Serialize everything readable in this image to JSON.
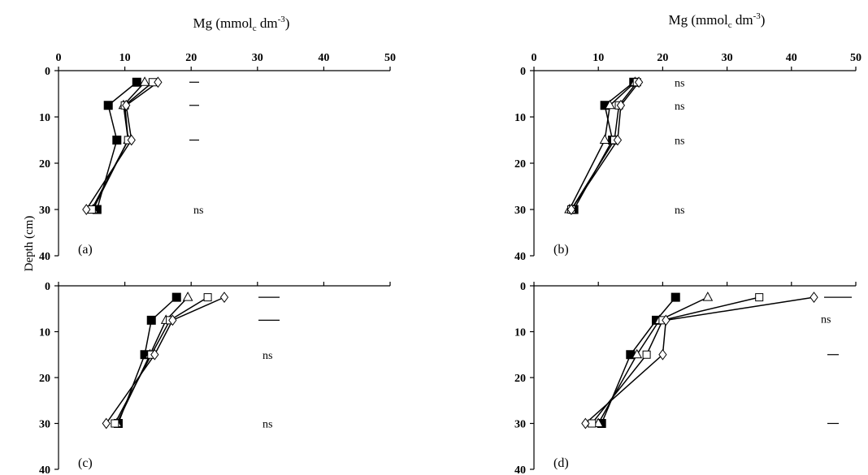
{
  "figure": {
    "title_prefix": "Mg (mmol",
    "title_sub": "c",
    "title_mid": " dm",
    "title_sup": "-3",
    "title_suffix": ")",
    "ylabel": "Depth (cm)"
  },
  "chart_data": [
    {
      "type": "line",
      "panel": "a",
      "label": "(a)",
      "show_title": true,
      "x_axis_position": "top",
      "xlim": [
        0,
        50
      ],
      "ylim": [
        0,
        40
      ],
      "y_inverted": true,
      "x_ticks": [
        0,
        10,
        20,
        30,
        40,
        50
      ],
      "y_ticks": [
        0,
        10,
        20,
        30,
        40
      ],
      "grid": false,
      "series": [
        {
          "marker": "filled-square",
          "points": [
            [
              11.8,
              2.5
            ],
            [
              7.5,
              7.5
            ],
            [
              8.8,
              15
            ],
            [
              5.8,
              30
            ]
          ]
        },
        {
          "marker": "open-triangle",
          "points": [
            [
              13,
              2.5
            ],
            [
              9.8,
              7.5
            ],
            [
              10.5,
              15
            ],
            [
              5.2,
              30
            ]
          ]
        },
        {
          "marker": "open-square",
          "points": [
            [
              14.2,
              2.5
            ],
            [
              10,
              7.5
            ],
            [
              10.5,
              15
            ],
            [
              5,
              30
            ]
          ]
        },
        {
          "marker": "open-diamond",
          "points": [
            [
              15,
              2.5
            ],
            [
              10.2,
              7.5
            ],
            [
              11,
              15
            ],
            [
              4.2,
              30
            ]
          ]
        }
      ],
      "significance": [
        {
          "depth": 2.5,
          "text": "",
          "dash": true
        },
        {
          "depth": 7.5,
          "text": "",
          "dash": true
        },
        {
          "depth": 15,
          "text": "",
          "dash": true
        },
        {
          "depth": 30,
          "text": "ns",
          "dash": false
        }
      ]
    },
    {
      "type": "line",
      "panel": "b",
      "label": "(b)",
      "show_title": true,
      "x_axis_position": "top",
      "xlim": [
        0,
        50
      ],
      "ylim": [
        0,
        40
      ],
      "y_inverted": true,
      "x_ticks": [
        0,
        10,
        20,
        30,
        40,
        50
      ],
      "y_ticks": [
        0,
        10,
        20,
        30,
        40
      ],
      "grid": false,
      "series": [
        {
          "marker": "filled-square",
          "points": [
            [
              15.5,
              2.5
            ],
            [
              11,
              7.5
            ],
            [
              12.2,
              15
            ],
            [
              6.2,
              30
            ]
          ]
        },
        {
          "marker": "open-triangle",
          "points": [
            [
              15.7,
              2.5
            ],
            [
              11.8,
              7.5
            ],
            [
              11,
              15
            ],
            [
              5.5,
              30
            ]
          ]
        },
        {
          "marker": "open-square",
          "points": [
            [
              16,
              2.5
            ],
            [
              13.2,
              7.5
            ],
            [
              12.5,
              15
            ],
            [
              5.8,
              30
            ]
          ]
        },
        {
          "marker": "open-diamond",
          "points": [
            [
              16.3,
              2.5
            ],
            [
              13.5,
              7.5
            ],
            [
              13,
              15
            ],
            [
              5.8,
              30
            ]
          ]
        }
      ],
      "significance": [
        {
          "depth": 2.5,
          "text": "ns",
          "dash": false
        },
        {
          "depth": 7.5,
          "text": "ns",
          "dash": false
        },
        {
          "depth": 15,
          "text": "ns",
          "dash": false
        },
        {
          "depth": 30,
          "text": "ns",
          "dash": false
        }
      ]
    },
    {
      "type": "line",
      "panel": "c",
      "label": "(c)",
      "show_title": false,
      "x_axis_position": "top",
      "xlim": [
        0,
        50
      ],
      "ylim": [
        0,
        40
      ],
      "y_inverted": true,
      "x_ticks": [],
      "y_ticks": [
        0,
        10,
        20,
        30,
        40
      ],
      "grid": false,
      "series": [
        {
          "marker": "filled-square",
          "points": [
            [
              17.8,
              2.5
            ],
            [
              14,
              7.5
            ],
            [
              13,
              15
            ],
            [
              9,
              30
            ]
          ]
        },
        {
          "marker": "open-triangle",
          "points": [
            [
              19.5,
              2.5
            ],
            [
              16.2,
              7.5
            ],
            [
              13.8,
              15
            ],
            [
              8.8,
              30
            ]
          ]
        },
        {
          "marker": "open-square",
          "points": [
            [
              22.5,
              2.5
            ],
            [
              16.8,
              7.5
            ],
            [
              14,
              15
            ],
            [
              8.5,
              30
            ]
          ]
        },
        {
          "marker": "open-diamond",
          "points": [
            [
              25,
              2.5
            ],
            [
              17.2,
              7.5
            ],
            [
              14.5,
              15
            ],
            [
              7.2,
              30
            ]
          ]
        }
      ],
      "significance": [
        {
          "depth": 2.5,
          "text": "",
          "dash": true
        },
        {
          "depth": 7.5,
          "text": "",
          "dash": true
        },
        {
          "depth": 15,
          "text": "ns",
          "dash": false
        },
        {
          "depth": 30,
          "text": "ns",
          "dash": false
        }
      ]
    },
    {
      "type": "line",
      "panel": "d",
      "label": "(d)",
      "show_title": false,
      "x_axis_position": "top",
      "xlim": [
        0,
        50
      ],
      "ylim": [
        0,
        40
      ],
      "y_inverted": true,
      "x_ticks": [],
      "y_ticks": [
        0,
        10,
        20,
        30,
        40
      ],
      "grid": false,
      "series": [
        {
          "marker": "filled-square",
          "points": [
            [
              22,
              2.5
            ],
            [
              19,
              7.5
            ],
            [
              15,
              15
            ],
            [
              10.5,
              30
            ]
          ]
        },
        {
          "marker": "open-triangle",
          "points": [
            [
              27,
              2.5
            ],
            [
              19.5,
              7.5
            ],
            [
              16,
              15
            ],
            [
              10,
              30
            ]
          ]
        },
        {
          "marker": "open-square",
          "points": [
            [
              35,
              2.5
            ],
            [
              20,
              7.5
            ],
            [
              17.5,
              15
            ],
            [
              9,
              30
            ]
          ]
        },
        {
          "marker": "open-diamond",
          "points": [
            [
              43.5,
              2.5
            ],
            [
              20.5,
              7.5
            ],
            [
              20,
              15
            ],
            [
              8,
              30
            ]
          ]
        }
      ],
      "significance": [
        {
          "depth": 2.5,
          "text": "",
          "dash": true
        },
        {
          "depth": 7.5,
          "text": "ns",
          "dash": false
        },
        {
          "depth": 15,
          "text": "",
          "dash": true
        },
        {
          "depth": 30,
          "text": "",
          "dash": true
        }
      ]
    }
  ]
}
